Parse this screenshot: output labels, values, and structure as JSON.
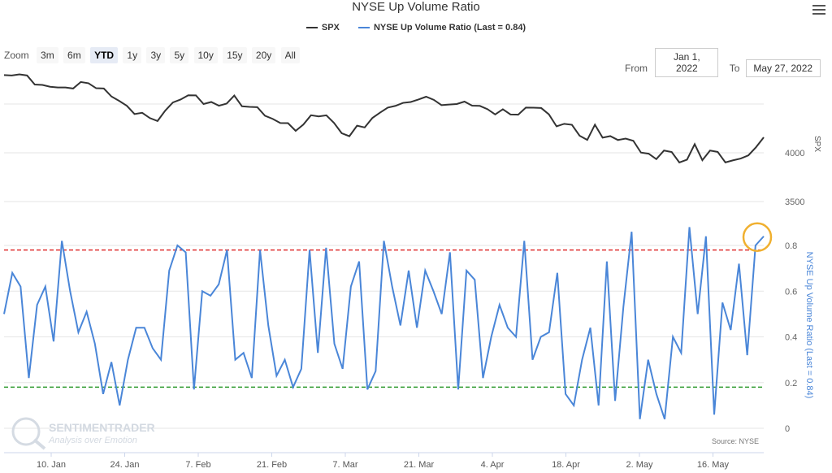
{
  "title": "NYSE Up Volume Ratio",
  "legend": [
    {
      "label": "SPX",
      "color": "#333333"
    },
    {
      "label": "NYSE Up Volume Ratio (Last = 0.84)",
      "color": "#4a86d8"
    }
  ],
  "zoom": {
    "label": "Zoom",
    "buttons": [
      "3m",
      "6m",
      "YTD",
      "1y",
      "3y",
      "5y",
      "10y",
      "15y",
      "20y",
      "All"
    ],
    "active": "YTD"
  },
  "range": {
    "from_label": "From",
    "from_value": "Jan 1, 2022",
    "to_label": "To",
    "to_value": "May 27, 2022"
  },
  "watermark": {
    "name": "SENTIMENTRADER",
    "tagline": "Analysis over Emotion"
  },
  "source": "Source: NYSE",
  "colors": {
    "spx": "#333333",
    "ratio": "#4a86d8",
    "upper_ref": "#e03030",
    "lower_ref": "#2e9a2e",
    "highlight": "#f0b030"
  },
  "chart_data": [
    {
      "type": "line",
      "name": "SPX panel",
      "ylabel": "SPX",
      "yticks": [
        {
          "value": 4000,
          "label": "4000"
        },
        {
          "value": 3500,
          "label": "3500"
        }
      ],
      "series": [
        {
          "name": "SPX",
          "values": [
            4797,
            4793,
            4804,
            4793,
            4700,
            4696,
            4677,
            4670,
            4670,
            4659,
            4726,
            4713,
            4662,
            4659,
            4577,
            4532,
            4482,
            4397,
            4410,
            4356,
            4326,
            4432,
            4516,
            4546,
            4590,
            4589,
            4500,
            4521,
            4483,
            4504,
            4587,
            4477,
            4471,
            4468,
            4380,
            4348,
            4305,
            4304,
            4225,
            4289,
            4385,
            4373,
            4384,
            4306,
            4201,
            4170,
            4278,
            4260,
            4357,
            4412,
            4463,
            4481,
            4512,
            4521,
            4546,
            4575,
            4543,
            4489,
            4495,
            4500,
            4525,
            4483,
            4481,
            4447,
            4393,
            4446,
            4393,
            4391,
            4463,
            4462,
            4459,
            4394,
            4271,
            4297,
            4287,
            4175,
            4132,
            4288,
            4155,
            4171,
            4131,
            4146,
            4123,
            4002,
            3991,
            3935,
            4023,
            4008,
            3901,
            3930,
            4088,
            3924,
            4023,
            4009,
            3901,
            3923,
            3941,
            3974,
            4058,
            4158
          ]
        }
      ]
    },
    {
      "type": "line",
      "name": "NYSE Up Volume Ratio panel",
      "ylabel": "NYSE Up Volume Ratio (Last = 0.84)",
      "ylim": [
        0,
        0.9
      ],
      "yticks": [
        0,
        0.2,
        0.4,
        0.6,
        0.8
      ],
      "reference_lines": [
        0.78,
        0.18
      ],
      "x_tick_labels": [
        "10. Jan",
        "24. Jan",
        "7. Feb",
        "21. Feb",
        "7. Mar",
        "21. Mar",
        "4. Apr",
        "18. Apr",
        "2. May",
        "16. May"
      ],
      "series": [
        {
          "name": "NYSE Up Volume Ratio",
          "values": [
            0.5,
            0.68,
            0.62,
            0.22,
            0.54,
            0.62,
            0.38,
            0.82,
            0.6,
            0.42,
            0.51,
            0.37,
            0.15,
            0.29,
            0.1,
            0.3,
            0.44,
            0.44,
            0.35,
            0.3,
            0.69,
            0.8,
            0.77,
            0.17,
            0.6,
            0.58,
            0.63,
            0.78,
            0.3,
            0.33,
            0.22,
            0.78,
            0.45,
            0.23,
            0.3,
            0.18,
            0.26,
            0.78,
            0.33,
            0.79,
            0.37,
            0.26,
            0.62,
            0.73,
            0.17,
            0.25,
            0.82,
            0.62,
            0.45,
            0.69,
            0.44,
            0.69,
            0.6,
            0.5,
            0.77,
            0.17,
            0.69,
            0.65,
            0.22,
            0.4,
            0.54,
            0.44,
            0.4,
            0.82,
            0.3,
            0.4,
            0.42,
            0.68,
            0.15,
            0.1,
            0.3,
            0.44,
            0.1,
            0.73,
            0.12,
            0.53,
            0.86,
            0.04,
            0.3,
            0.15,
            0.04,
            0.4,
            0.33,
            0.88,
            0.5,
            0.84,
            0.06,
            0.55,
            0.43,
            0.72,
            0.32,
            0.8,
            0.84
          ]
        }
      ]
    }
  ]
}
